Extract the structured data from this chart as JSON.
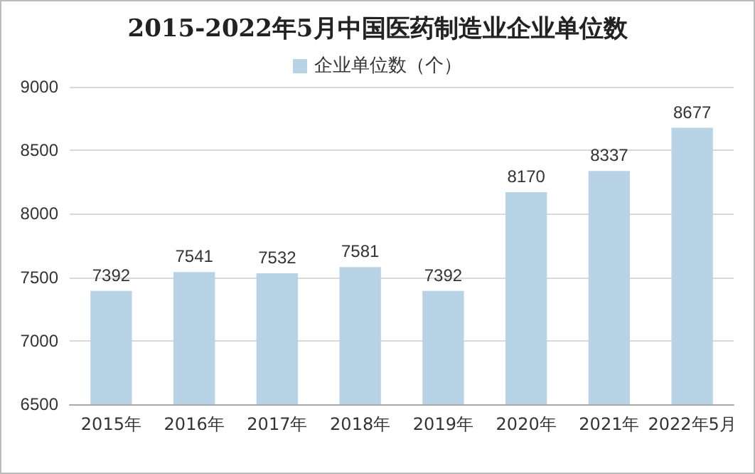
{
  "chart_data": {
    "type": "bar",
    "title": "2015-2022年5月中国医药制造业企业单位数",
    "categories": [
      "2015年",
      "2016年",
      "2017年",
      "2018年",
      "2019年",
      "2020年",
      "2021年",
      "2022年5月"
    ],
    "series": [
      {
        "name": "企业单位数（个）",
        "color": "#b8d3e6",
        "values": [
          7392,
          7541,
          7532,
          7581,
          7392,
          8170,
          8337,
          8677
        ]
      }
    ],
    "ylim": [
      6500,
      9000
    ],
    "yticks": [
      6500,
      7000,
      7500,
      8000,
      8500,
      9000
    ],
    "grid": "y",
    "legend": "top",
    "data_labels": true
  }
}
